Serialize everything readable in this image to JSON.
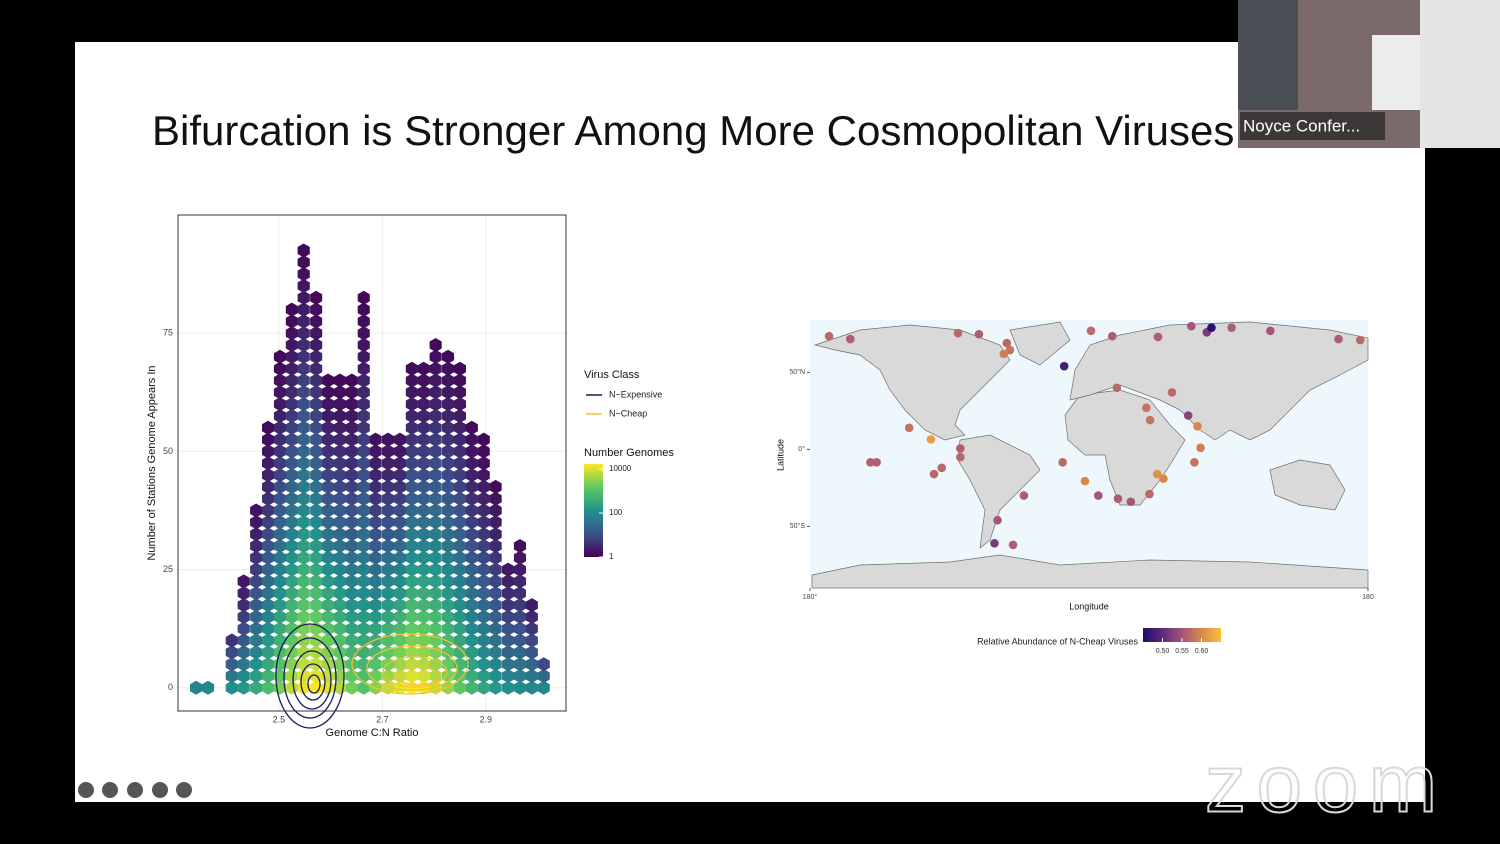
{
  "meeting": {
    "participant_name": "Noyce Confer...",
    "watermark": "zoom"
  },
  "slide": {
    "title": "Bifurcation is Stronger Among More Cosmopolitan Viruses"
  },
  "hexbin": {
    "type": "hexbin",
    "xlabel": "Genome C:N Ratio",
    "ylabel": "Number of Stations Genome Appears In",
    "xlim": [
      2.305,
      3.055
    ],
    "ylim": [
      -4.9,
      100
    ],
    "xticks": [
      2.5,
      2.7,
      2.9
    ],
    "yticks": [
      0,
      25,
      50,
      75
    ],
    "grid": true,
    "x": [
      2.34,
      2.363,
      2.409,
      2.432,
      2.456,
      2.479,
      2.502,
      2.525,
      2.548,
      2.572,
      2.595,
      2.618,
      2.641,
      2.664,
      2.687,
      2.711,
      2.734,
      2.757,
      2.78,
      2.803,
      2.827,
      2.85,
      2.873,
      2.896,
      2.919,
      2.943,
      2.966,
      2.989,
      3.012
    ],
    "top": [
      0,
      0,
      11.2,
      22.8,
      39.7,
      56.5,
      71.3,
      81.9,
      94.5,
      84.4,
      65.0,
      65.0,
      65.0,
      84.4,
      54.9,
      54.9,
      54.9,
      68.6,
      68.6,
      73.8,
      71.7,
      69.6,
      57.0,
      52.7,
      44.3,
      27.4,
      30.6,
      18.6,
      5.9
    ],
    "legend": {
      "class_title": "Virus Class",
      "classes": [
        {
          "name": "N−Expensive",
          "color": "#1b1b5a"
        },
        {
          "name": "N−Cheap",
          "color": "#f2c12e"
        }
      ],
      "count_title": "Number Genomes",
      "count_lim": [
        1,
        17000
      ],
      "count_ticks": [
        10000,
        100,
        1
      ],
      "log_scale": true,
      "colors": [
        "#440154",
        "#3b528b",
        "#21918c",
        "#5ec962",
        "#fde725"
      ]
    }
  },
  "map": {
    "type": "scatter",
    "xlabel": "Longitude",
    "ylabel": "Latitude",
    "xlim": [
      -180,
      180
    ],
    "ylim": [
      -90,
      84
    ],
    "xticks": [
      {
        "value": -180,
        "label": "180°"
      },
      {
        "value": 180,
        "label": "180"
      }
    ],
    "yticks": [
      {
        "value": 50,
        "label": "50°N"
      },
      {
        "value": 0,
        "label": "0°"
      },
      {
        "value": -50,
        "label": "50°S"
      }
    ],
    "points": {
      "lon": [
        -167.7,
        -154,
        -84.5,
        -71,
        -53,
        -51,
        -55,
        -16,
        1.3,
        15,
        44.5,
        66,
        76,
        79,
        92,
        117,
        161,
        175,
        18,
        37,
        39.4,
        64,
        70,
        53.5,
        -116,
        -102,
        -83,
        -83,
        -141,
        -137,
        -100,
        -95,
        -17,
        -42,
        -2.6,
        6,
        18.7,
        27,
        39,
        44,
        48,
        68,
        72,
        -59,
        -61,
        -49
      ],
      "lat": [
        73.5,
        71.6,
        75.5,
        74.8,
        69,
        64.5,
        62,
        54,
        77,
        73.5,
        73,
        80,
        76,
        79,
        79,
        77,
        71.6,
        71,
        40,
        27,
        19,
        22,
        15,
        37,
        14,
        6.5,
        0.6,
        -5,
        -8.4,
        -8.4,
        -16,
        -12,
        -8.4,
        -30,
        -20.6,
        -30,
        -32,
        -34,
        -29,
        -16,
        -19,
        -8.4,
        1,
        -46,
        -61,
        -62
      ],
      "values": [
        0.57,
        0.56,
        0.57,
        0.56,
        0.57,
        0.58,
        0.59,
        0.48,
        0.57,
        0.56,
        0.56,
        0.55,
        0.52,
        0.46,
        0.56,
        0.55,
        0.56,
        0.57,
        0.57,
        0.58,
        0.58,
        0.53,
        0.6,
        0.57,
        0.58,
        0.62,
        0.56,
        0.57,
        0.56,
        0.56,
        0.57,
        0.57,
        0.57,
        0.56,
        0.6,
        0.55,
        0.56,
        0.55,
        0.57,
        0.61,
        0.6,
        0.58,
        0.59,
        0.55,
        0.52,
        0.56
      ]
    },
    "color_title": "Relative Abundance of N-Cheap Viruses",
    "color_lim": [
      0.45,
      0.65
    ],
    "color_ticks": [
      {
        "value": 0.5,
        "label": "0.50"
      },
      0.55,
      {
        "value": 0.6,
        "label": "0.60"
      }
    ],
    "colors": [
      "#1f0c6e",
      "#5d2a7b",
      "#a5547a",
      "#d7884c",
      "#f7c23a"
    ]
  }
}
